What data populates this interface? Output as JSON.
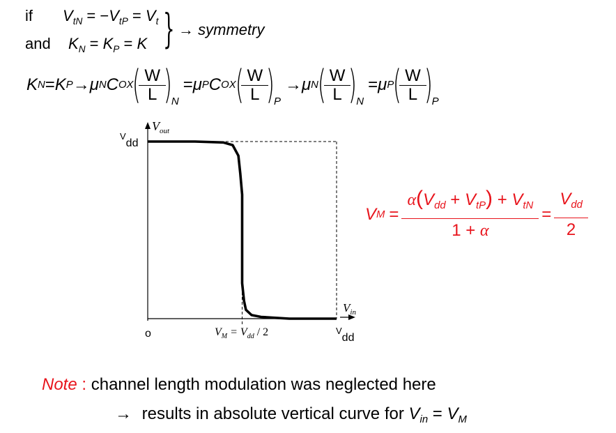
{
  "condition": {
    "if_label": "if",
    "and_label": "and",
    "line1": {
      "v1": "V",
      "v1_sub": "tN",
      "eq1": " = −",
      "v2": "V",
      "v2_sub": "tP",
      "eq2": " = ",
      "v3": "V",
      "v3_sub": "t"
    },
    "line2": {
      "k1": "K",
      "k1_sub": "N",
      "eq1": " = ",
      "k2": "K",
      "k2_sub": "P",
      "eq2": " = ",
      "k3": "K"
    },
    "arrow": "→",
    "result": "symmetry"
  },
  "k_equation": {
    "k1": "K",
    "k1_sub": "N",
    "eq": " = ",
    "k2": "K",
    "k2_sub": "P",
    "arrow1": " → ",
    "mu_n": "μ",
    "mu_n_sub": "N",
    "cox1": "C",
    "cox1_sub": "OX",
    "w1": "W",
    "l1": "L",
    "s1": "N",
    "eq2": " = ",
    "mu_p": "μ",
    "mu_p_sub": "P",
    "cox2": "C",
    "cox2_sub": "OX",
    "w2": "W",
    "l2": "L",
    "s2": "P",
    "arrow2": " → ",
    "mu_n2": "μ",
    "mu_n2_sub": "N",
    "w3": "W",
    "l3": "L",
    "s3": "N",
    "eq3": " = ",
    "mu_p2": "μ",
    "mu_p2_sub": "P",
    "w4": "W",
    "l4": "L",
    "s4": "P",
    "lparen": "(",
    "rparen": ")"
  },
  "graph": {
    "y_axis_label": "V",
    "y_axis_sub": "out",
    "y_top_label": "V",
    "y_top_sub": "dd",
    "origin_label": "o",
    "x_axis_label": "V",
    "x_axis_sub": "in",
    "x_right_label": "V",
    "x_right_sub": "dd",
    "vm_label": "V",
    "vm_label_sub": "M",
    "vm_eq": " = V",
    "vm_eq_sub": "dd",
    "vm_div": " / 2"
  },
  "vm_formula": {
    "lhs": "V",
    "lhs_sub": "M",
    "eq": " = ",
    "num_alpha": "α",
    "num_open": "(",
    "num_v1": "V",
    "num_v1_sub": "dd",
    "num_plus1": " + ",
    "num_v2": "V",
    "num_v2_sub": "tP",
    "num_close": ")",
    "num_plus2": " + ",
    "num_v3": "V",
    "num_v3_sub": "tN",
    "den": "1 + ",
    "den_alpha": "α",
    "eq2": " = ",
    "rhs_num": "V",
    "rhs_num_sub": "dd",
    "rhs_den": "2"
  },
  "note": {
    "label": "Note",
    "colon": " : ",
    "line1": "channel length modulation was neglected here",
    "arrow": "→",
    "line2": "results in absolute vertical curve for ",
    "v1": "V",
    "v1_sub": "in",
    "eq": " = ",
    "v2": "V",
    "v2_sub": "M"
  },
  "colors": {
    "accent": "#e8141c",
    "text": "#000000"
  },
  "chart_data": {
    "type": "line",
    "title": "",
    "xlabel": "V_in",
    "ylabel": "V_out",
    "x_ticks": [
      "o",
      "V_M = V_dd / 2",
      "V_dd"
    ],
    "y_ticks": [
      "V_dd"
    ],
    "series": [
      {
        "name": "",
        "x": [
          0,
          0.25,
          0.4,
          0.45,
          0.48,
          0.49,
          0.5,
          0.5,
          0.51,
          0.52,
          0.55,
          0.6,
          0.75,
          1.0
        ],
        "y": [
          1.0,
          1.0,
          0.995,
          0.98,
          0.92,
          0.82,
          0.7,
          0.2,
          0.1,
          0.05,
          0.02,
          0.01,
          0.0,
          0.0
        ]
      }
    ],
    "xlim": [
      0,
      1
    ],
    "ylim": [
      0,
      1
    ],
    "grid": false
  }
}
